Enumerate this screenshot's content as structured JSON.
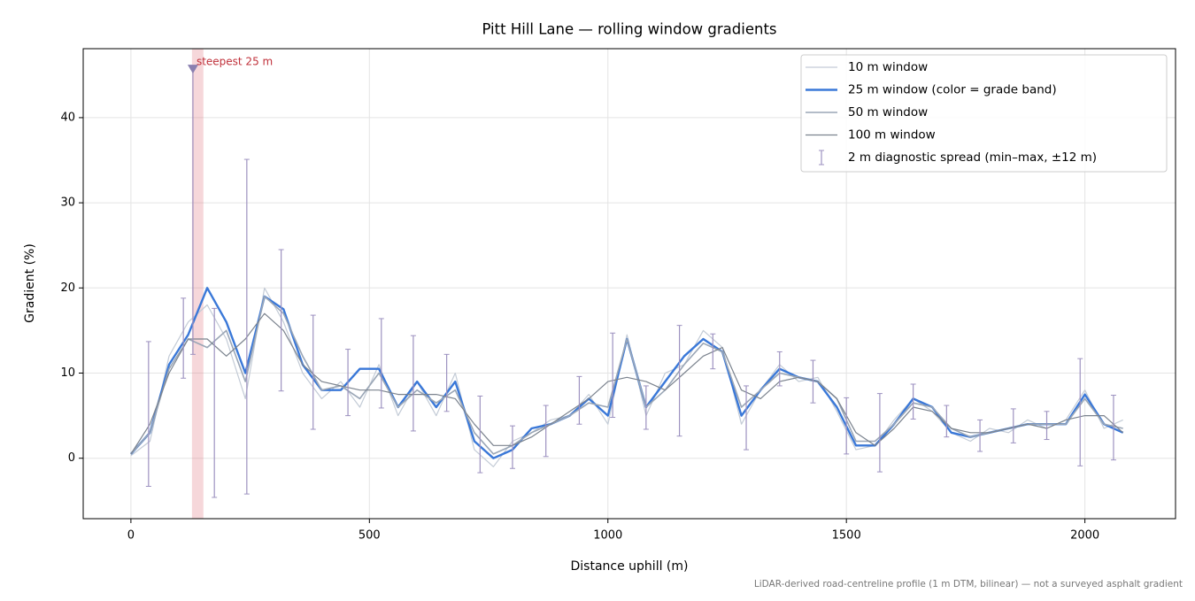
{
  "chart_data": {
    "type": "line",
    "title": "Pitt Hill Lane — rolling window gradients",
    "xlabel": "Distance uphill (m)",
    "ylabel": "Gradient (%)",
    "note": "LiDAR-derived road-centreline profile (1 m DTM, bilinear) — not a surveyed asphalt gradient",
    "xlim": [
      -100,
      2190
    ],
    "ylim": [
      -7.1,
      48.1
    ],
    "xticks": [
      0,
      500,
      1000,
      1500,
      2000
    ],
    "yticks": [
      0,
      10,
      20,
      30,
      40
    ],
    "grid": true,
    "legend": "upper right",
    "x": [
      0,
      40,
      80,
      120,
      160,
      200,
      240,
      280,
      320,
      360,
      400,
      440,
      480,
      520,
      560,
      600,
      640,
      680,
      720,
      760,
      800,
      840,
      880,
      920,
      960,
      1000,
      1040,
      1080,
      1120,
      1160,
      1200,
      1240,
      1280,
      1320,
      1360,
      1400,
      1440,
      1480,
      1520,
      1560,
      1600,
      1640,
      1680,
      1720,
      1760,
      1800,
      1840,
      1880,
      1920,
      1960,
      2000,
      2040,
      2080
    ],
    "series": [
      {
        "name": "10 m window",
        "color": "#c3cbd6",
        "values": [
          0.3,
          2,
          12,
          16,
          18,
          14,
          7,
          20,
          16,
          10,
          7,
          9,
          6,
          11,
          5,
          9,
          5,
          10,
          1,
          -1,
          2,
          3,
          4.5,
          5,
          7.5,
          4,
          14.5,
          5,
          10,
          11,
          15,
          13,
          4,
          8,
          11,
          9,
          9.5,
          5.5,
          1,
          1.5,
          4.5,
          7,
          5.5,
          3,
          2,
          3.5,
          3,
          4.5,
          3.5,
          4.5,
          8,
          3.5,
          4.5
        ]
      },
      {
        "name": "25 m window (color = grade band)",
        "color": "#3a78d8",
        "values": [
          0.5,
          3,
          11,
          14.5,
          20,
          16,
          10,
          19,
          17.5,
          11,
          8,
          8,
          10.5,
          10.5,
          6,
          9,
          6,
          9,
          2,
          0,
          1,
          3.5,
          4,
          5,
          7,
          5,
          14,
          6,
          9,
          12,
          14,
          12.5,
          5,
          8,
          10.5,
          9.5,
          9,
          6,
          1.5,
          1.5,
          4,
          7,
          6,
          3,
          2.5,
          3,
          3.5,
          4,
          4,
          4,
          7.5,
          4,
          3
        ]
      },
      {
        "name": "50 m window",
        "color": "#9aa6b6",
        "values": [
          0.5,
          3,
          10.5,
          14,
          13,
          15,
          9,
          19,
          17,
          12,
          8,
          8.5,
          7,
          10,
          6,
          8,
          6.5,
          8,
          3,
          0.5,
          1.5,
          3,
          4,
          5,
          6.5,
          6,
          14,
          6,
          8,
          11,
          13.5,
          12.5,
          6,
          8,
          10,
          9.5,
          9,
          7,
          2,
          2,
          4,
          6.5,
          6,
          3.5,
          2.5,
          3,
          3.5,
          4,
          4,
          4,
          7,
          4,
          3.5
        ]
      },
      {
        "name": "100 m window",
        "color": "#7b838e",
        "values": [
          0.5,
          4,
          10,
          14,
          14,
          12,
          14,
          17,
          15,
          11,
          9,
          8.5,
          8,
          8,
          7.5,
          7.5,
          7.5,
          7,
          4,
          1.5,
          1.5,
          2.5,
          4,
          5.5,
          7,
          9,
          9.5,
          9,
          8,
          10,
          12,
          13,
          8,
          7,
          9,
          9.5,
          9,
          7,
          3,
          1.5,
          3.5,
          6,
          5.5,
          3.5,
          3,
          3,
          3.5,
          4,
          3.5,
          4.5,
          5,
          5,
          3
        ]
      }
    ],
    "errorbars": {
      "name": "2 m diagnostic spread (min–max, ±12 m)",
      "color": "#9d92c0",
      "x": [
        37,
        110,
        130,
        175,
        243,
        315,
        382,
        455,
        525,
        592,
        662,
        732,
        800,
        870,
        940,
        1010,
        1080,
        1150,
        1220,
        1290,
        1360,
        1430,
        1500,
        1570,
        1640,
        1710,
        1780,
        1850,
        1920,
        1990,
        2060
      ],
      "low": [
        -3.3,
        9.4,
        12.2,
        -4.6,
        -4.2,
        7.9,
        3.4,
        5,
        5.9,
        3.2,
        5.5,
        -1.7,
        -1.2,
        0.2,
        4,
        4.8,
        3.4,
        2.6,
        10.5,
        1,
        8.5,
        6.5,
        0.5,
        -1.6,
        4.6,
        2.5,
        0.8,
        1.8,
        2.2,
        -0.9,
        -0.2
      ],
      "high": [
        13.7,
        18.8,
        45.7,
        17.6,
        35.1,
        24.5,
        16.8,
        12.8,
        16.4,
        14.4,
        12.2,
        7.3,
        3.8,
        6.2,
        9.6,
        14.7,
        8.5,
        15.6,
        14.6,
        8.5,
        12.5,
        11.5,
        7.1,
        7.6,
        8.7,
        6.2,
        4.5,
        5.8,
        5.5,
        11.7,
        7.4
      ]
    },
    "highlight": {
      "label": "steepest 25 m",
      "xrange": [
        128,
        152
      ],
      "color": "#e0707a",
      "marker": [
        130,
        45.7
      ]
    }
  }
}
